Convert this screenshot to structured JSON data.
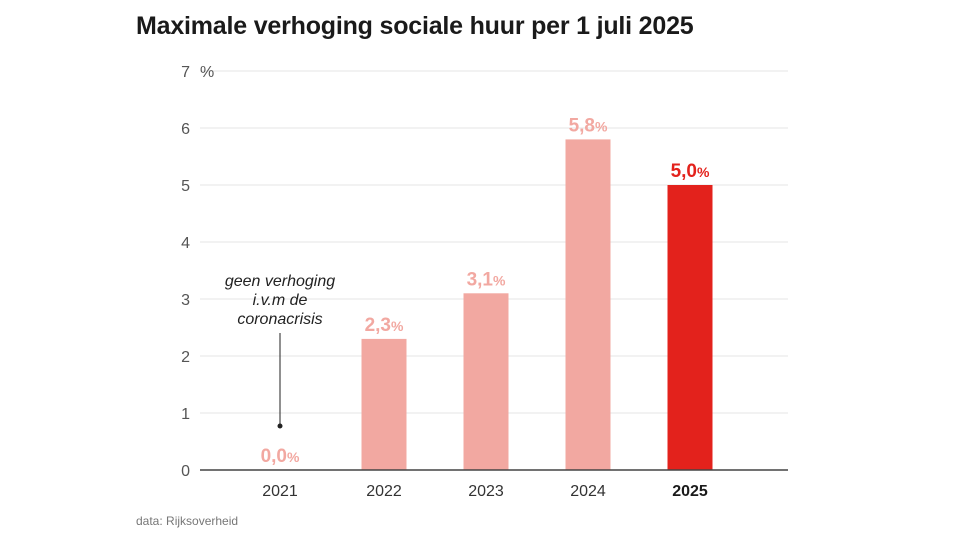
{
  "title": "Maximale verhoging sociale huur per 1 juli 2025",
  "source": "data: Rijksoverheid",
  "colors": {
    "muted": "#f2a8a1",
    "highlight": "#e3221c",
    "axis": "#444444",
    "grid": "#e6e6e6"
  },
  "annotation": {
    "lines": [
      "geen verhoging",
      "i.v.m de",
      "coronacrisis"
    ]
  },
  "chart_data": {
    "type": "bar",
    "title": "Maximale verhoging sociale huur per 1 juli 2025",
    "xlabel": "",
    "ylabel": "",
    "y_unit": "%",
    "categories": [
      "2021",
      "2022",
      "2023",
      "2024",
      "2025"
    ],
    "values": [
      0.0,
      2.3,
      3.1,
      5.8,
      5.0
    ],
    "data_labels": [
      "0,0",
      "2,3",
      "3,1",
      "5,8",
      "5,0"
    ],
    "label_suffix": "%",
    "ylim": [
      0,
      7
    ],
    "yticks": [
      0,
      1,
      2,
      3,
      4,
      5,
      6,
      7
    ],
    "highlight_category": "2025",
    "grid": true
  }
}
